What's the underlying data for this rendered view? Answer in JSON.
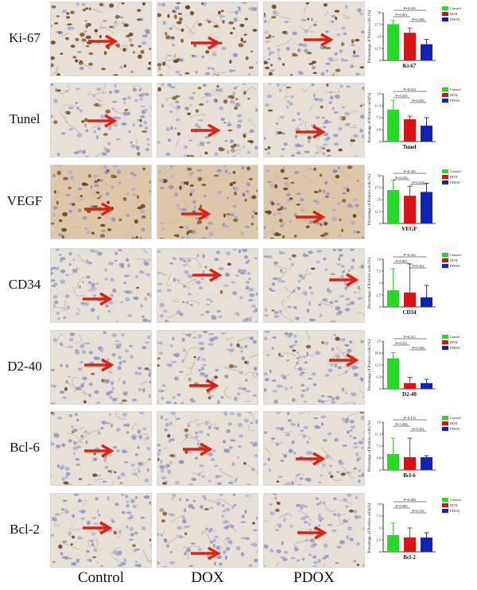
{
  "row_labels": [
    "Ki-67",
    "Tunel",
    "VEGF",
    "CD34",
    "D2-40",
    "Bcl-6",
    "Bcl-2"
  ],
  "column_labels": [
    "Control",
    "DOX",
    "PDOX"
  ],
  "colors": {
    "control": "#22dd22",
    "dox": "#dd1111",
    "pdox": "#1122bb",
    "arrow": "#e02010",
    "stain_brown": "#7a4a1c",
    "tissue_bg": "#e8e2d8",
    "nuclei_blue": "#8a94c0"
  },
  "chart_data": [
    {
      "type": "bar",
      "title": "Ki-67",
      "ylabel": "Prencentage of Positive cells (%)",
      "categories": [
        "Control",
        "DOX",
        "PDOX"
      ],
      "values": [
        38,
        29,
        17
      ],
      "errors": [
        4,
        5,
        5
      ],
      "ylim": [
        0,
        50
      ],
      "legend": [
        "Control",
        "DOX",
        "PDOX"
      ],
      "annotations": [
        "P=0.001",
        "P=0.001",
        "P=0.208"
      ]
    },
    {
      "type": "bar",
      "title": "Tunel",
      "ylabel": "Percentage of Positive cells(%)",
      "categories": [
        "Control",
        "DOX",
        "PDOX"
      ],
      "values": [
        10,
        7,
        5
      ],
      "errors": [
        3,
        1,
        2.5
      ],
      "ylim": [
        0,
        15
      ],
      "legend": [
        "Control",
        "DOX",
        "PDOX"
      ],
      "annotations": [
        "P=0.013",
        "P=0.355",
        "P=0.450"
      ]
    },
    {
      "type": "bar",
      "title": "VEGF",
      "ylabel": "Percentage of Positive cells (%)",
      "categories": [
        "Control",
        "DOX",
        "PDOX"
      ],
      "values": [
        35,
        29,
        33
      ],
      "errors": [
        10,
        10,
        9
      ],
      "ylim": [
        0,
        50
      ],
      "legend": [
        "Control",
        "DOX",
        "PDOX"
      ],
      "annotations": [
        "P=0.301",
        "P=0.234",
        "P=0.234"
      ]
    },
    {
      "type": "bar",
      "title": "CD34",
      "ylabel": "Percentage of Positive cells (%)",
      "categories": [
        "Control",
        "DOX",
        "PDOX"
      ],
      "values": [
        3.5,
        3,
        2
      ],
      "errors": [
        4.5,
        6,
        2.5
      ],
      "ylim": [
        0,
        10
      ],
      "legend": [
        "Control",
        "DOX",
        "PDOX"
      ],
      "annotations": [
        "P=0.221",
        "P=0.861",
        "P=0.352"
      ]
    },
    {
      "type": "bar",
      "title": "D2-40",
      "ylabel": "Percentage of Positive cells (%)",
      "categories": [
        "Control",
        "DOX",
        "PDOX"
      ],
      "values": [
        16,
        3,
        3
      ],
      "errors": [
        3,
        3,
        2
      ],
      "ylim": [
        0,
        25
      ],
      "legend": [
        "Contol",
        "DOX",
        "PDOX"
      ],
      "annotations": [
        "P=0.211",
        "P=0.231",
        "P=0.368"
      ]
    },
    {
      "type": "bar",
      "title": "Bcl-6",
      "ylabel": "Percentage of Positive cells (%)",
      "categories": [
        "Control",
        "DOX",
        "PDOX"
      ],
      "values": [
        5,
        4,
        4
      ],
      "errors": [
        5,
        6,
        0.5
      ],
      "ylim": [
        0,
        15
      ],
      "legend": [
        "Contorl",
        "DOX",
        "PDOX"
      ],
      "annotations": [
        "P=0.131",
        "P=1.896",
        "P=0.351"
      ]
    },
    {
      "type": "bar",
      "title": "Bcl-2",
      "ylabel": "Percentage of Positive cells(%)",
      "categories": [
        "Control",
        "DOX",
        "PDOX"
      ],
      "values": [
        3.5,
        3,
        3
      ],
      "errors": [
        2.5,
        2,
        1
      ],
      "ylim": [
        0,
        10
      ],
      "legend": [
        "Control",
        "DOX",
        "PDOX"
      ],
      "annotations": [
        "P=0.483",
        "P=0.909",
        "P=0.152"
      ]
    }
  ]
}
